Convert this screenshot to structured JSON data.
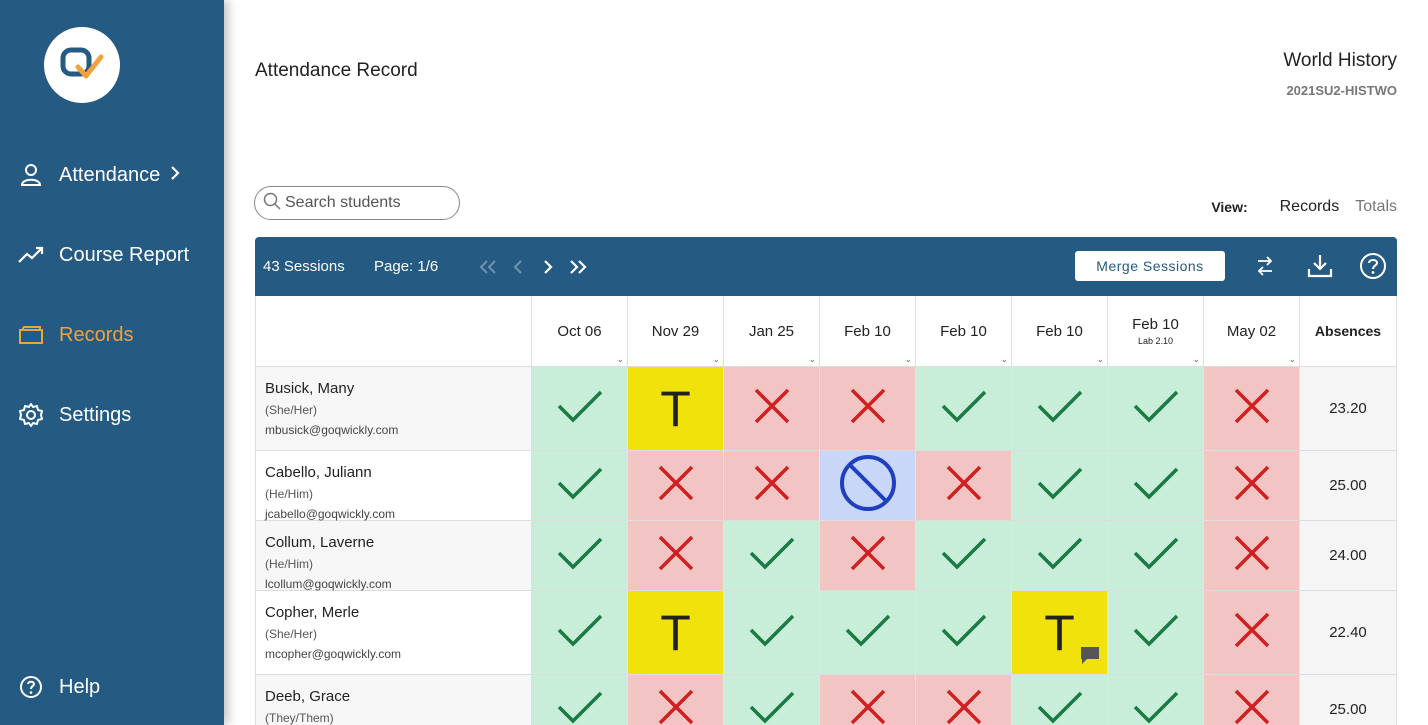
{
  "sidebar": {
    "items": [
      {
        "label": "Attendance",
        "icon": "person-icon",
        "has_chevron": true,
        "active": false
      },
      {
        "label": "Course Report",
        "icon": "trend-icon",
        "active": false
      },
      {
        "label": "Records",
        "icon": "folder-icon",
        "active": true
      },
      {
        "label": "Settings",
        "icon": "gear-icon",
        "active": false
      }
    ],
    "help_label": "Help",
    "accent_color": "#f0a23c",
    "bg_color": "#255a82"
  },
  "header": {
    "title": "Attendance Record",
    "course_title": "World History",
    "course_code": "2021SU2-HISTWO"
  },
  "search": {
    "placeholder": "Search students",
    "value": ""
  },
  "view": {
    "label": "View:",
    "options": [
      "Records",
      "Totals"
    ],
    "selected": "Records"
  },
  "toolbar": {
    "sessions_label": "43 Sessions",
    "page_label": "Page: 1/6",
    "merge_label": "Merge Sessions"
  },
  "table": {
    "columns": [
      {
        "date": "Oct 06",
        "sub": ""
      },
      {
        "date": "Nov 29",
        "sub": ""
      },
      {
        "date": "Jan 25",
        "sub": ""
      },
      {
        "date": "Feb 10",
        "sub": ""
      },
      {
        "date": "Feb 10",
        "sub": ""
      },
      {
        "date": "Feb 10",
        "sub": ""
      },
      {
        "date": "Feb 10",
        "sub": "Lab 2.10"
      },
      {
        "date": "May 02",
        "sub": ""
      }
    ],
    "absences_header": "Absences",
    "rows": [
      {
        "name": "Busick, Many",
        "pronouns": "(She/Her)",
        "email": "mbusick@goqwickly.com",
        "marks": [
          "P",
          "T",
          "A",
          "A",
          "P",
          "P",
          "P",
          "A"
        ],
        "absences": "23.20"
      },
      {
        "name": "Cabello, Juliann",
        "pronouns": "(He/Him)",
        "email": "jcabello@goqwickly.com",
        "marks": [
          "P",
          "A",
          "A",
          "E",
          "A",
          "P",
          "P",
          "A"
        ],
        "absences": "25.00"
      },
      {
        "name": "Collum, Laverne",
        "pronouns": "(He/Him)",
        "email": "lcollum@goqwickly.com",
        "marks": [
          "P",
          "A",
          "P",
          "A",
          "P",
          "P",
          "P",
          "A"
        ],
        "absences": "24.00"
      },
      {
        "name": "Copher, Merle",
        "pronouns": "(She/Her)",
        "email": "mcopher@goqwickly.com",
        "marks": [
          "P",
          "T",
          "P",
          "P",
          "P",
          "TN",
          "P",
          "A"
        ],
        "absences": "22.40"
      },
      {
        "name": "Deeb, Grace",
        "pronouns": "(They/Them)",
        "email": "",
        "marks": [
          "P",
          "A",
          "P",
          "A",
          "A",
          "P",
          "P",
          "A"
        ],
        "absences": "25.00"
      }
    ],
    "status_colors": {
      "present": "#c8eed9",
      "absent": "#f3c4c4",
      "tardy": "#f2e20b",
      "excused": "#c8d6f7"
    }
  }
}
